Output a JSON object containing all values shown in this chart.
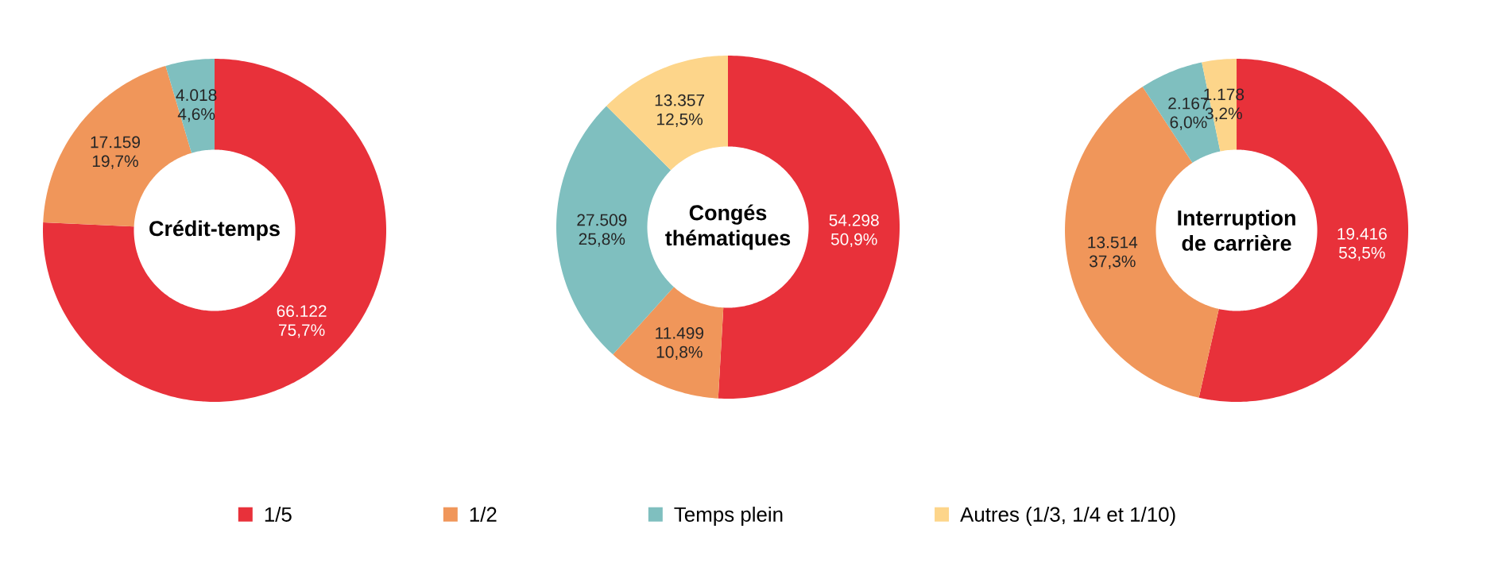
{
  "chart_data": [
    {
      "type": "donut",
      "title": "Crédit-temps",
      "categories": [
        null,
        null,
        null
      ],
      "values": [
        66122,
        17159,
        4018
      ],
      "colors": [
        "#e8313a",
        "#f0965a",
        "#7fbfbf"
      ],
      "value_labels": [
        "66.122 75,7%",
        "17.159 19,7%",
        "4.018 4,6%"
      ]
    },
    {
      "type": "donut",
      "title": "Congés thématiques",
      "categories": [
        "1/5",
        "1/2",
        "Temps plein",
        "Autres (1/3, 1/4 et 1/10)"
      ],
      "values": [
        54298,
        11499,
        27509,
        13357
      ],
      "colors": [
        "#e8313a",
        "#f0965a",
        "#7fbfbf",
        "#fdd58a"
      ],
      "value_labels": [
        "54.298 50,9%",
        "11.499 10,8%",
        "27.509 25,8%",
        "13.357 12,5%"
      ],
      "legend": "bottom"
    },
    {
      "type": "donut",
      "title": "Interruption de carrière",
      "categories": [
        null,
        null,
        null,
        null
      ],
      "values": [
        19416,
        13514,
        2167,
        1178
      ],
      "colors": [
        "#e8313a",
        "#f0965a",
        "#7fbfbf",
        "#fdd58a"
      ],
      "value_labels": [
        "19.416 53,5%",
        "13.514 37,3%",
        "2.167 6,0%",
        "1.178 3,2%"
      ]
    }
  ]
}
